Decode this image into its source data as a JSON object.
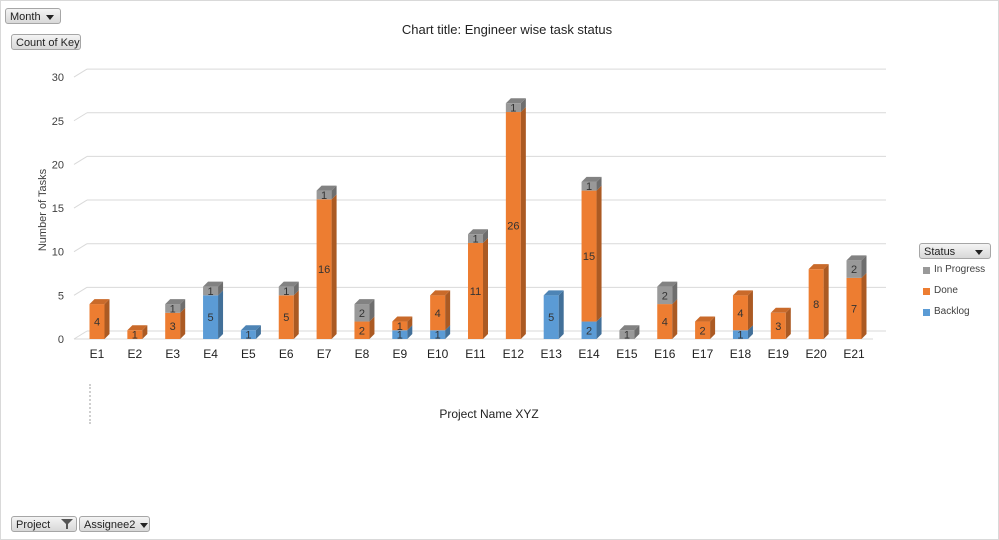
{
  "pivot": {
    "month_button": "Month",
    "value_button": "Count of Key",
    "project_button": "Project",
    "assignee_button": "Assignee2",
    "status_button": "Status"
  },
  "colors": {
    "In Progress": "#999999",
    "Done": "#ED7D31",
    "Backlog": "#5B9BD5"
  },
  "chart_data": {
    "type": "bar",
    "stacked": true,
    "three_d": true,
    "title": "Chart title: Engineer wise task status",
    "xlabel": "Project Name XYZ",
    "ylabel": "Number of Tasks",
    "ylim": [
      0,
      30
    ],
    "yticks": [
      0,
      5,
      10,
      15,
      20,
      25,
      30
    ],
    "grid": true,
    "legend_position": "right",
    "categories": [
      "E1",
      "E2",
      "E3",
      "E4",
      "E5",
      "E6",
      "E7",
      "E8",
      "E9",
      "E10",
      "E11",
      "E12",
      "E13",
      "E14",
      "E15",
      "E16",
      "E17",
      "E18",
      "E19",
      "E20",
      "E21"
    ],
    "series": [
      {
        "name": "Backlog",
        "values": [
          0,
          0,
          0,
          5,
          1,
          0,
          0,
          0,
          1,
          1,
          0,
          0,
          5,
          2,
          0,
          0,
          0,
          1,
          0,
          0,
          0
        ]
      },
      {
        "name": "Done",
        "values": [
          4,
          1,
          3,
          0,
          0,
          5,
          16,
          2,
          1,
          4,
          11,
          26,
          0,
          15,
          0,
          4,
          2,
          4,
          3,
          8,
          7
        ]
      },
      {
        "name": "In Progress",
        "values": [
          0,
          0,
          1,
          1,
          0,
          1,
          1,
          2,
          0,
          0,
          1,
          1,
          0,
          1,
          1,
          2,
          0,
          0,
          0,
          0,
          2
        ]
      }
    ],
    "legend_order": [
      "In Progress",
      "Done",
      "Backlog"
    ]
  }
}
